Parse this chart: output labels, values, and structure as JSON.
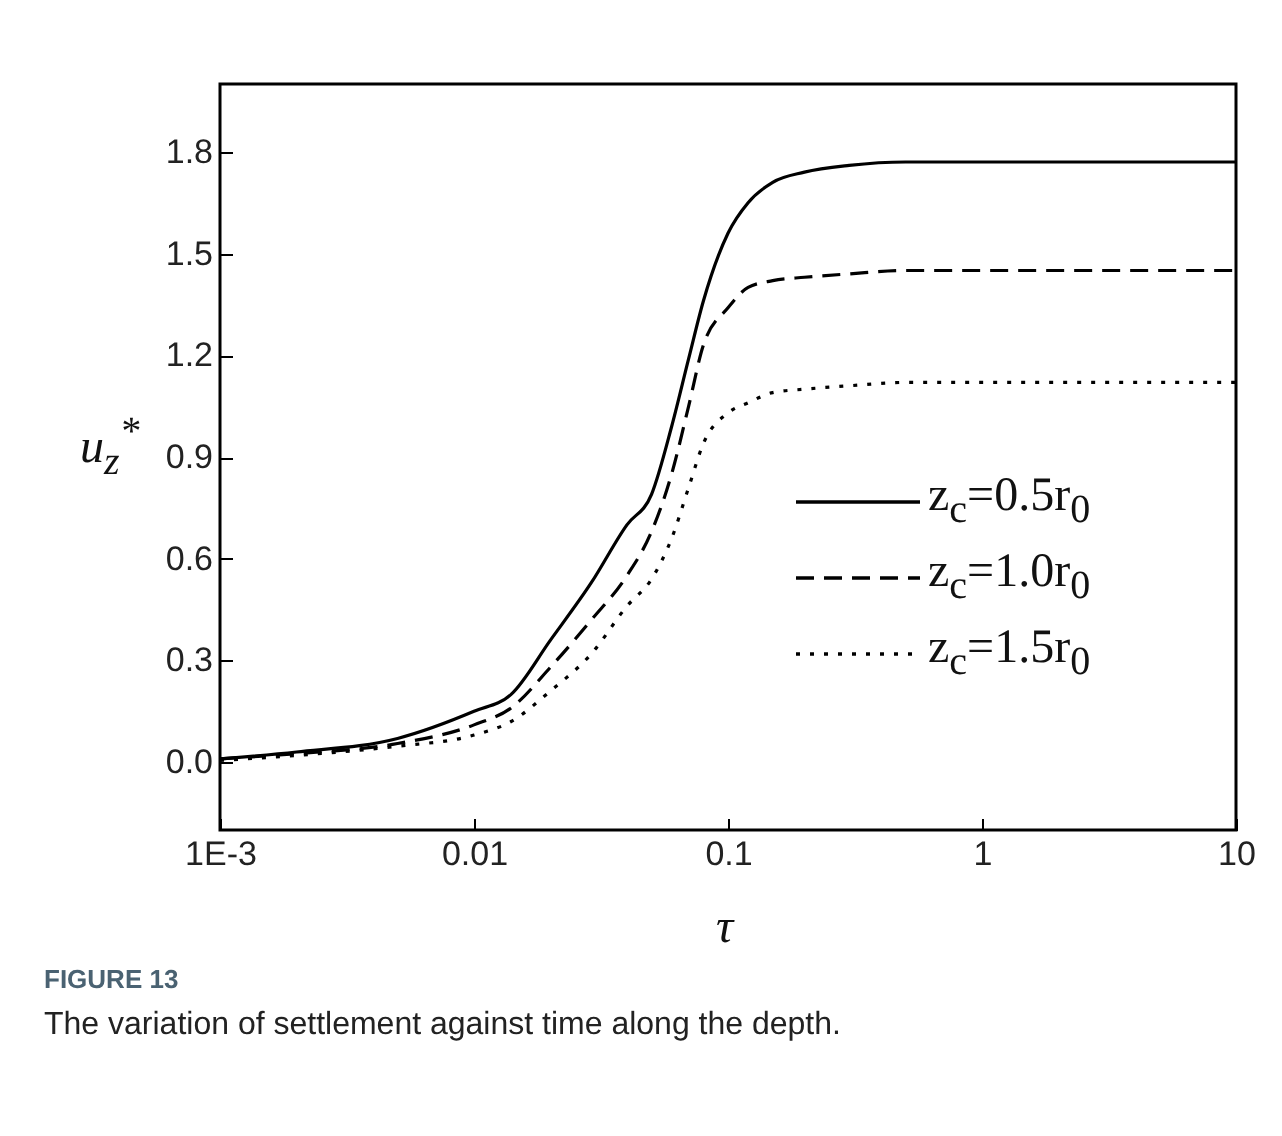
{
  "chart_data": {
    "type": "line",
    "xlabel": "τ",
    "ylabel": "u$_{z}$$^{*}$",
    "annotations": [
      "FIGURE 13",
      "The variation of settlement against time along the depth."
    ],
    "log": "x",
    "grid": false,
    "legend": "right",
    "marker": "none",
    "xlim": [
      0.001,
      10
    ],
    "xticks": [
      {
        "value": 0.001,
        "label": "1E-3"
      },
      0.01,
      0.1,
      1,
      10
    ],
    "ylim": [
      -0.2,
      2.0
    ],
    "yticks": [
      {
        "value": 0,
        "label": "0.0"
      },
      0.3,
      0.6,
      0.9,
      1.2,
      1.5,
      1.8
    ],
    "x": [
      0.001,
      0.002,
      0.005,
      0.01,
      0.014,
      0.02,
      0.029,
      0.04,
      0.05,
      0.06,
      0.07,
      0.08,
      0.1,
      0.12,
      0.15,
      0.2,
      0.3,
      0.5,
      1,
      10
    ],
    "series": [
      {
        "name": "z$_{c}$=0.5r$_{0}$",
        "color": "#000000",
        "line_style": "solid",
        "values": [
          0.01,
          0.03,
          0.07,
          0.15,
          0.2,
          0.36,
          0.53,
          0.7,
          0.79,
          0.99,
          1.19,
          1.36,
          1.56,
          1.65,
          1.71,
          1.74,
          1.76,
          1.77,
          1.77,
          1.77
        ]
      },
      {
        "name": "z$_{c}$=1.0r$_{0}$",
        "color": "#000000",
        "line_style": "dashed",
        "values": [
          0.01,
          0.025,
          0.055,
          0.11,
          0.16,
          0.28,
          0.42,
          0.55,
          0.68,
          0.85,
          1.05,
          1.23,
          1.34,
          1.4,
          1.42,
          1.43,
          1.44,
          1.45,
          1.45,
          1.45
        ]
      },
      {
        "name": "z$_{c}$=1.5r$_{0}$",
        "color": "#000000",
        "line_style": "dotted",
        "values": [
          0.005,
          0.02,
          0.047,
          0.08,
          0.12,
          0.21,
          0.32,
          0.46,
          0.54,
          0.66,
          0.81,
          0.94,
          1.03,
          1.06,
          1.09,
          1.1,
          1.11,
          1.12,
          1.12,
          1.12
        ]
      }
    ]
  }
}
